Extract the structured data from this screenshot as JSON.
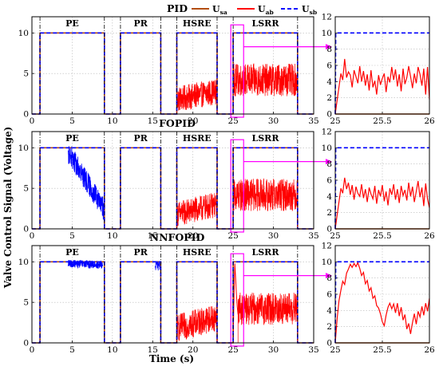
{
  "figure": {
    "xlabel": "Time (s)",
    "ylabel": "Valve Control Signal (Voltage)",
    "legend": [
      {
        "key": "usa",
        "label": "U",
        "sub": "sa",
        "color": "#b34d0f",
        "dash": "solid"
      },
      {
        "key": "uab",
        "label": "U",
        "sub": "ab",
        "color": "#ff0000",
        "dash": "solid"
      },
      {
        "key": "usb",
        "label": "U",
        "sub": "sb",
        "color": "#0000ff",
        "dash": "dashed"
      }
    ],
    "colors": {
      "usa": "#b34d0f",
      "uab": "#ff0000",
      "usb": "#0000ff",
      "zoom": "#ff00ff",
      "divider": "#000000"
    }
  },
  "chart_data": [
    {
      "type": "line",
      "title": "PID",
      "panel": "main",
      "xlim": [
        0,
        35
      ],
      "ylim": [
        0,
        12
      ],
      "xticks": [
        0,
        5,
        10,
        15,
        20,
        25,
        30,
        35
      ],
      "yticks": [
        0,
        5,
        10
      ],
      "grid": true,
      "regions": [
        {
          "label": "PE",
          "x_start": 1,
          "x_end": 9
        },
        {
          "label": "PR",
          "x_start": 11,
          "x_end": 16
        },
        {
          "label": "HSRE",
          "x_start": 18,
          "x_end": 23
        },
        {
          "label": "LSRR",
          "x_start": 25,
          "x_end": 33
        }
      ],
      "dividers_x": [
        1,
        9,
        11,
        16,
        18,
        23,
        25,
        33
      ],
      "usb_noise": [],
      "uab_noise": [
        {
          "x_start": 18,
          "x_end": 23,
          "mean_start": 1.8,
          "mean_end": 2.8,
          "amp": 1.6
        },
        {
          "x_start": 25,
          "x_end": 33,
          "mean_start": 4.2,
          "mean_end": 4.2,
          "amp": 2.0
        }
      ],
      "zoom_box": {
        "x": [
          25,
          26
        ],
        "y": [
          0,
          11
        ]
      }
    },
    {
      "type": "line",
      "title": "",
      "panel": "zoom",
      "xlim": [
        25,
        26
      ],
      "ylim": [
        0,
        12
      ],
      "xticks": [
        25,
        25.5,
        26
      ],
      "yticks": [
        0,
        2,
        4,
        6,
        8,
        10,
        12
      ],
      "grid": true,
      "usb_level": 10,
      "uab_rise": [
        [
          25.0,
          0
        ],
        [
          25.03,
          2.5
        ],
        [
          25.06,
          5.0
        ]
      ],
      "uab": [
        [
          25.06,
          5.0
        ],
        [
          25.08,
          4.2
        ],
        [
          25.1,
          6.8
        ],
        [
          25.12,
          4.5
        ],
        [
          25.14,
          5.2
        ],
        [
          25.16,
          4.8
        ],
        [
          25.18,
          3.3
        ],
        [
          25.2,
          5.4
        ],
        [
          25.22,
          4.6
        ],
        [
          25.24,
          3.8
        ],
        [
          25.26,
          5.9
        ],
        [
          25.28,
          4.0
        ],
        [
          25.3,
          5.3
        ],
        [
          25.32,
          3.5
        ],
        [
          25.34,
          4.9
        ],
        [
          25.36,
          2.9
        ],
        [
          25.38,
          5.4
        ],
        [
          25.4,
          3.3
        ],
        [
          25.42,
          4.1
        ],
        [
          25.44,
          2.4
        ],
        [
          25.46,
          4.8
        ],
        [
          25.48,
          3.6
        ],
        [
          25.5,
          4.4
        ],
        [
          25.52,
          5.0
        ],
        [
          25.54,
          2.7
        ],
        [
          25.56,
          4.6
        ],
        [
          25.58,
          3.9
        ],
        [
          25.6,
          5.8
        ],
        [
          25.62,
          4.2
        ],
        [
          25.64,
          5.5
        ],
        [
          25.66,
          3.4
        ],
        [
          25.68,
          4.9
        ],
        [
          25.7,
          2.8
        ],
        [
          25.72,
          5.6
        ],
        [
          25.74,
          3.7
        ],
        [
          25.76,
          4.5
        ],
        [
          25.78,
          5.9
        ],
        [
          25.8,
          4.6
        ],
        [
          25.82,
          3.2
        ],
        [
          25.84,
          5.0
        ],
        [
          25.86,
          3.8
        ],
        [
          25.88,
          5.8
        ],
        [
          25.9,
          4.9
        ],
        [
          25.92,
          3.5
        ],
        [
          25.94,
          5.6
        ],
        [
          25.96,
          2.4
        ],
        [
          25.98,
          5.8
        ],
        [
          26.0,
          1.8
        ]
      ]
    },
    {
      "type": "line",
      "title": "FOPID",
      "panel": "main",
      "xlim": [
        0,
        35
      ],
      "ylim": [
        0,
        12
      ],
      "xticks": [
        0,
        5,
        10,
        15,
        20,
        25,
        30,
        35
      ],
      "yticks": [
        0,
        5,
        10
      ],
      "grid": true,
      "regions": [
        {
          "label": "PE",
          "x_start": 1,
          "x_end": 9
        },
        {
          "label": "PR",
          "x_start": 11,
          "x_end": 16
        },
        {
          "label": "HSRE",
          "x_start": 18,
          "x_end": 23
        },
        {
          "label": "LSRR",
          "x_start": 25,
          "x_end": 33
        }
      ],
      "dividers_x": [
        1,
        9,
        11,
        16,
        18,
        23,
        25,
        33
      ],
      "usb_noise": [
        {
          "x_start": 4.5,
          "x_end": 9,
          "mean_start": 9.5,
          "mean_end": 2.3,
          "amp": 1.4
        }
      ],
      "uab_noise": [
        {
          "x_start": 18,
          "x_end": 23,
          "mean_start": 1.8,
          "mean_end": 3.0,
          "amp": 1.6
        },
        {
          "x_start": 25,
          "x_end": 33,
          "mean_start": 4.2,
          "mean_end": 4.2,
          "amp": 2.0
        }
      ],
      "zoom_box": {
        "x": [
          25,
          26
        ],
        "y": [
          0,
          11
        ]
      }
    },
    {
      "type": "line",
      "title": "",
      "panel": "zoom",
      "xlim": [
        25,
        26
      ],
      "ylim": [
        0,
        12
      ],
      "xticks": [
        25,
        25.5,
        26
      ],
      "yticks": [
        0,
        2,
        4,
        6,
        8,
        10,
        12
      ],
      "grid": true,
      "usb_level": 10,
      "uab_rise": [
        [
          25.0,
          0
        ],
        [
          25.03,
          2.5
        ],
        [
          25.06,
          5.0
        ]
      ],
      "uab": [
        [
          25.06,
          5.0
        ],
        [
          25.08,
          4.4
        ],
        [
          25.1,
          6.3
        ],
        [
          25.12,
          4.9
        ],
        [
          25.14,
          5.7
        ],
        [
          25.16,
          4.2
        ],
        [
          25.18,
          5.4
        ],
        [
          25.2,
          3.6
        ],
        [
          25.22,
          5.2
        ],
        [
          25.24,
          4.4
        ],
        [
          25.26,
          4.0
        ],
        [
          25.28,
          5.5
        ],
        [
          25.3,
          3.8
        ],
        [
          25.32,
          4.9
        ],
        [
          25.34,
          3.3
        ],
        [
          25.36,
          5.1
        ],
        [
          25.38,
          4.3
        ],
        [
          25.4,
          3.7
        ],
        [
          25.42,
          5.3
        ],
        [
          25.44,
          3.1
        ],
        [
          25.46,
          4.8
        ],
        [
          25.48,
          4.0
        ],
        [
          25.5,
          5.4
        ],
        [
          25.52,
          3.4
        ],
        [
          25.54,
          4.6
        ],
        [
          25.56,
          2.9
        ],
        [
          25.58,
          5.0
        ],
        [
          25.6,
          4.2
        ],
        [
          25.62,
          5.5
        ],
        [
          25.64,
          3.6
        ],
        [
          25.66,
          4.9
        ],
        [
          25.68,
          3.2
        ],
        [
          25.7,
          5.3
        ],
        [
          25.72,
          4.1
        ],
        [
          25.74,
          4.8
        ],
        [
          25.76,
          3.5
        ],
        [
          25.78,
          5.7
        ],
        [
          25.8,
          4.0
        ],
        [
          25.82,
          5.2
        ],
        [
          25.84,
          3.3
        ],
        [
          25.86,
          4.6
        ],
        [
          25.88,
          5.9
        ],
        [
          25.9,
          3.9
        ],
        [
          25.92,
          5.1
        ],
        [
          25.94,
          2.8
        ],
        [
          25.96,
          5.6
        ],
        [
          25.98,
          3.7
        ],
        [
          26.0,
          2.6
        ]
      ]
    },
    {
      "type": "line",
      "title": "NNFOPID",
      "panel": "main",
      "xlim": [
        0,
        35
      ],
      "ylim": [
        0,
        12
      ],
      "xticks": [
        0,
        5,
        10,
        15,
        20,
        25,
        30,
        35
      ],
      "yticks": [
        0,
        5,
        10
      ],
      "grid": true,
      "regions": [
        {
          "label": "PE",
          "x_start": 1,
          "x_end": 9
        },
        {
          "label": "PR",
          "x_start": 11,
          "x_end": 16
        },
        {
          "label": "HSRE",
          "x_start": 18,
          "x_end": 23
        },
        {
          "label": "LSRR",
          "x_start": 25,
          "x_end": 33
        }
      ],
      "dividers_x": [
        1,
        9,
        11,
        16,
        18,
        23,
        25,
        33
      ],
      "usb_noise": [
        {
          "x_start": 4.5,
          "x_end": 8.8,
          "mean_start": 9.8,
          "mean_end": 9.6,
          "amp": 0.5
        },
        {
          "x_start": 15.3,
          "x_end": 15.9,
          "mean_start": 9.6,
          "mean_end": 9.4,
          "amp": 0.6
        }
      ],
      "uab_noise": [
        {
          "x_start": 18,
          "x_end": 23,
          "mean_start": 1.8,
          "mean_end": 3.2,
          "amp": 1.7
        },
        {
          "x_start": 25.6,
          "x_end": 33,
          "mean_start": 4.2,
          "mean_end": 4.2,
          "amp": 2.0
        }
      ],
      "uab_extra": [
        [
          25,
          0
        ],
        [
          25.1,
          6.0
        ],
        [
          25.2,
          9.8
        ],
        [
          25.3,
          8.0
        ],
        [
          25.4,
          6.0
        ],
        [
          25.5,
          4.5
        ],
        [
          25.6,
          3.5
        ]
      ],
      "zoom_box": {
        "x": [
          25,
          26
        ],
        "y": [
          0,
          11
        ]
      }
    },
    {
      "type": "line",
      "title": "",
      "panel": "zoom",
      "xlim": [
        25,
        26
      ],
      "ylim": [
        0,
        12
      ],
      "xticks": [
        25,
        25.5,
        26
      ],
      "yticks": [
        0,
        2,
        4,
        6,
        8,
        10,
        12
      ],
      "grid": true,
      "usb_level": 10,
      "uab_rise": [
        [
          25.0,
          0
        ],
        [
          25.02,
          3.0
        ],
        [
          25.04,
          5.2
        ]
      ],
      "uab": [
        [
          25.04,
          5.2
        ],
        [
          25.06,
          6.5
        ],
        [
          25.08,
          7.6
        ],
        [
          25.1,
          7.2
        ],
        [
          25.12,
          8.6
        ],
        [
          25.14,
          9.1
        ],
        [
          25.16,
          9.7
        ],
        [
          25.18,
          9.3
        ],
        [
          25.2,
          9.8
        ],
        [
          25.22,
          9.4
        ],
        [
          25.24,
          9.9
        ],
        [
          25.26,
          9.2
        ],
        [
          25.28,
          8.3
        ],
        [
          25.3,
          8.7
        ],
        [
          25.32,
          7.3
        ],
        [
          25.34,
          7.7
        ],
        [
          25.36,
          6.4
        ],
        [
          25.38,
          6.8
        ],
        [
          25.4,
          5.5
        ],
        [
          25.42,
          5.8
        ],
        [
          25.44,
          4.6
        ],
        [
          25.46,
          4.3
        ],
        [
          25.48,
          3.6
        ],
        [
          25.5,
          2.6
        ],
        [
          25.52,
          2.1
        ],
        [
          25.54,
          3.4
        ],
        [
          25.56,
          4.4
        ],
        [
          25.58,
          4.9
        ],
        [
          25.6,
          4.2
        ],
        [
          25.62,
          4.8
        ],
        [
          25.64,
          3.7
        ],
        [
          25.66,
          4.9
        ],
        [
          25.68,
          3.3
        ],
        [
          25.7,
          4.4
        ],
        [
          25.72,
          2.8
        ],
        [
          25.74,
          3.5
        ],
        [
          25.76,
          1.7
        ],
        [
          25.78,
          2.4
        ],
        [
          25.8,
          1.1
        ],
        [
          25.82,
          2.5
        ],
        [
          25.84,
          3.6
        ],
        [
          25.86,
          2.3
        ],
        [
          25.88,
          3.9
        ],
        [
          25.9,
          3.2
        ],
        [
          25.92,
          4.5
        ],
        [
          25.94,
          3.4
        ],
        [
          25.96,
          4.9
        ],
        [
          25.98,
          3.9
        ],
        [
          26.0,
          5.5
        ]
      ]
    }
  ]
}
